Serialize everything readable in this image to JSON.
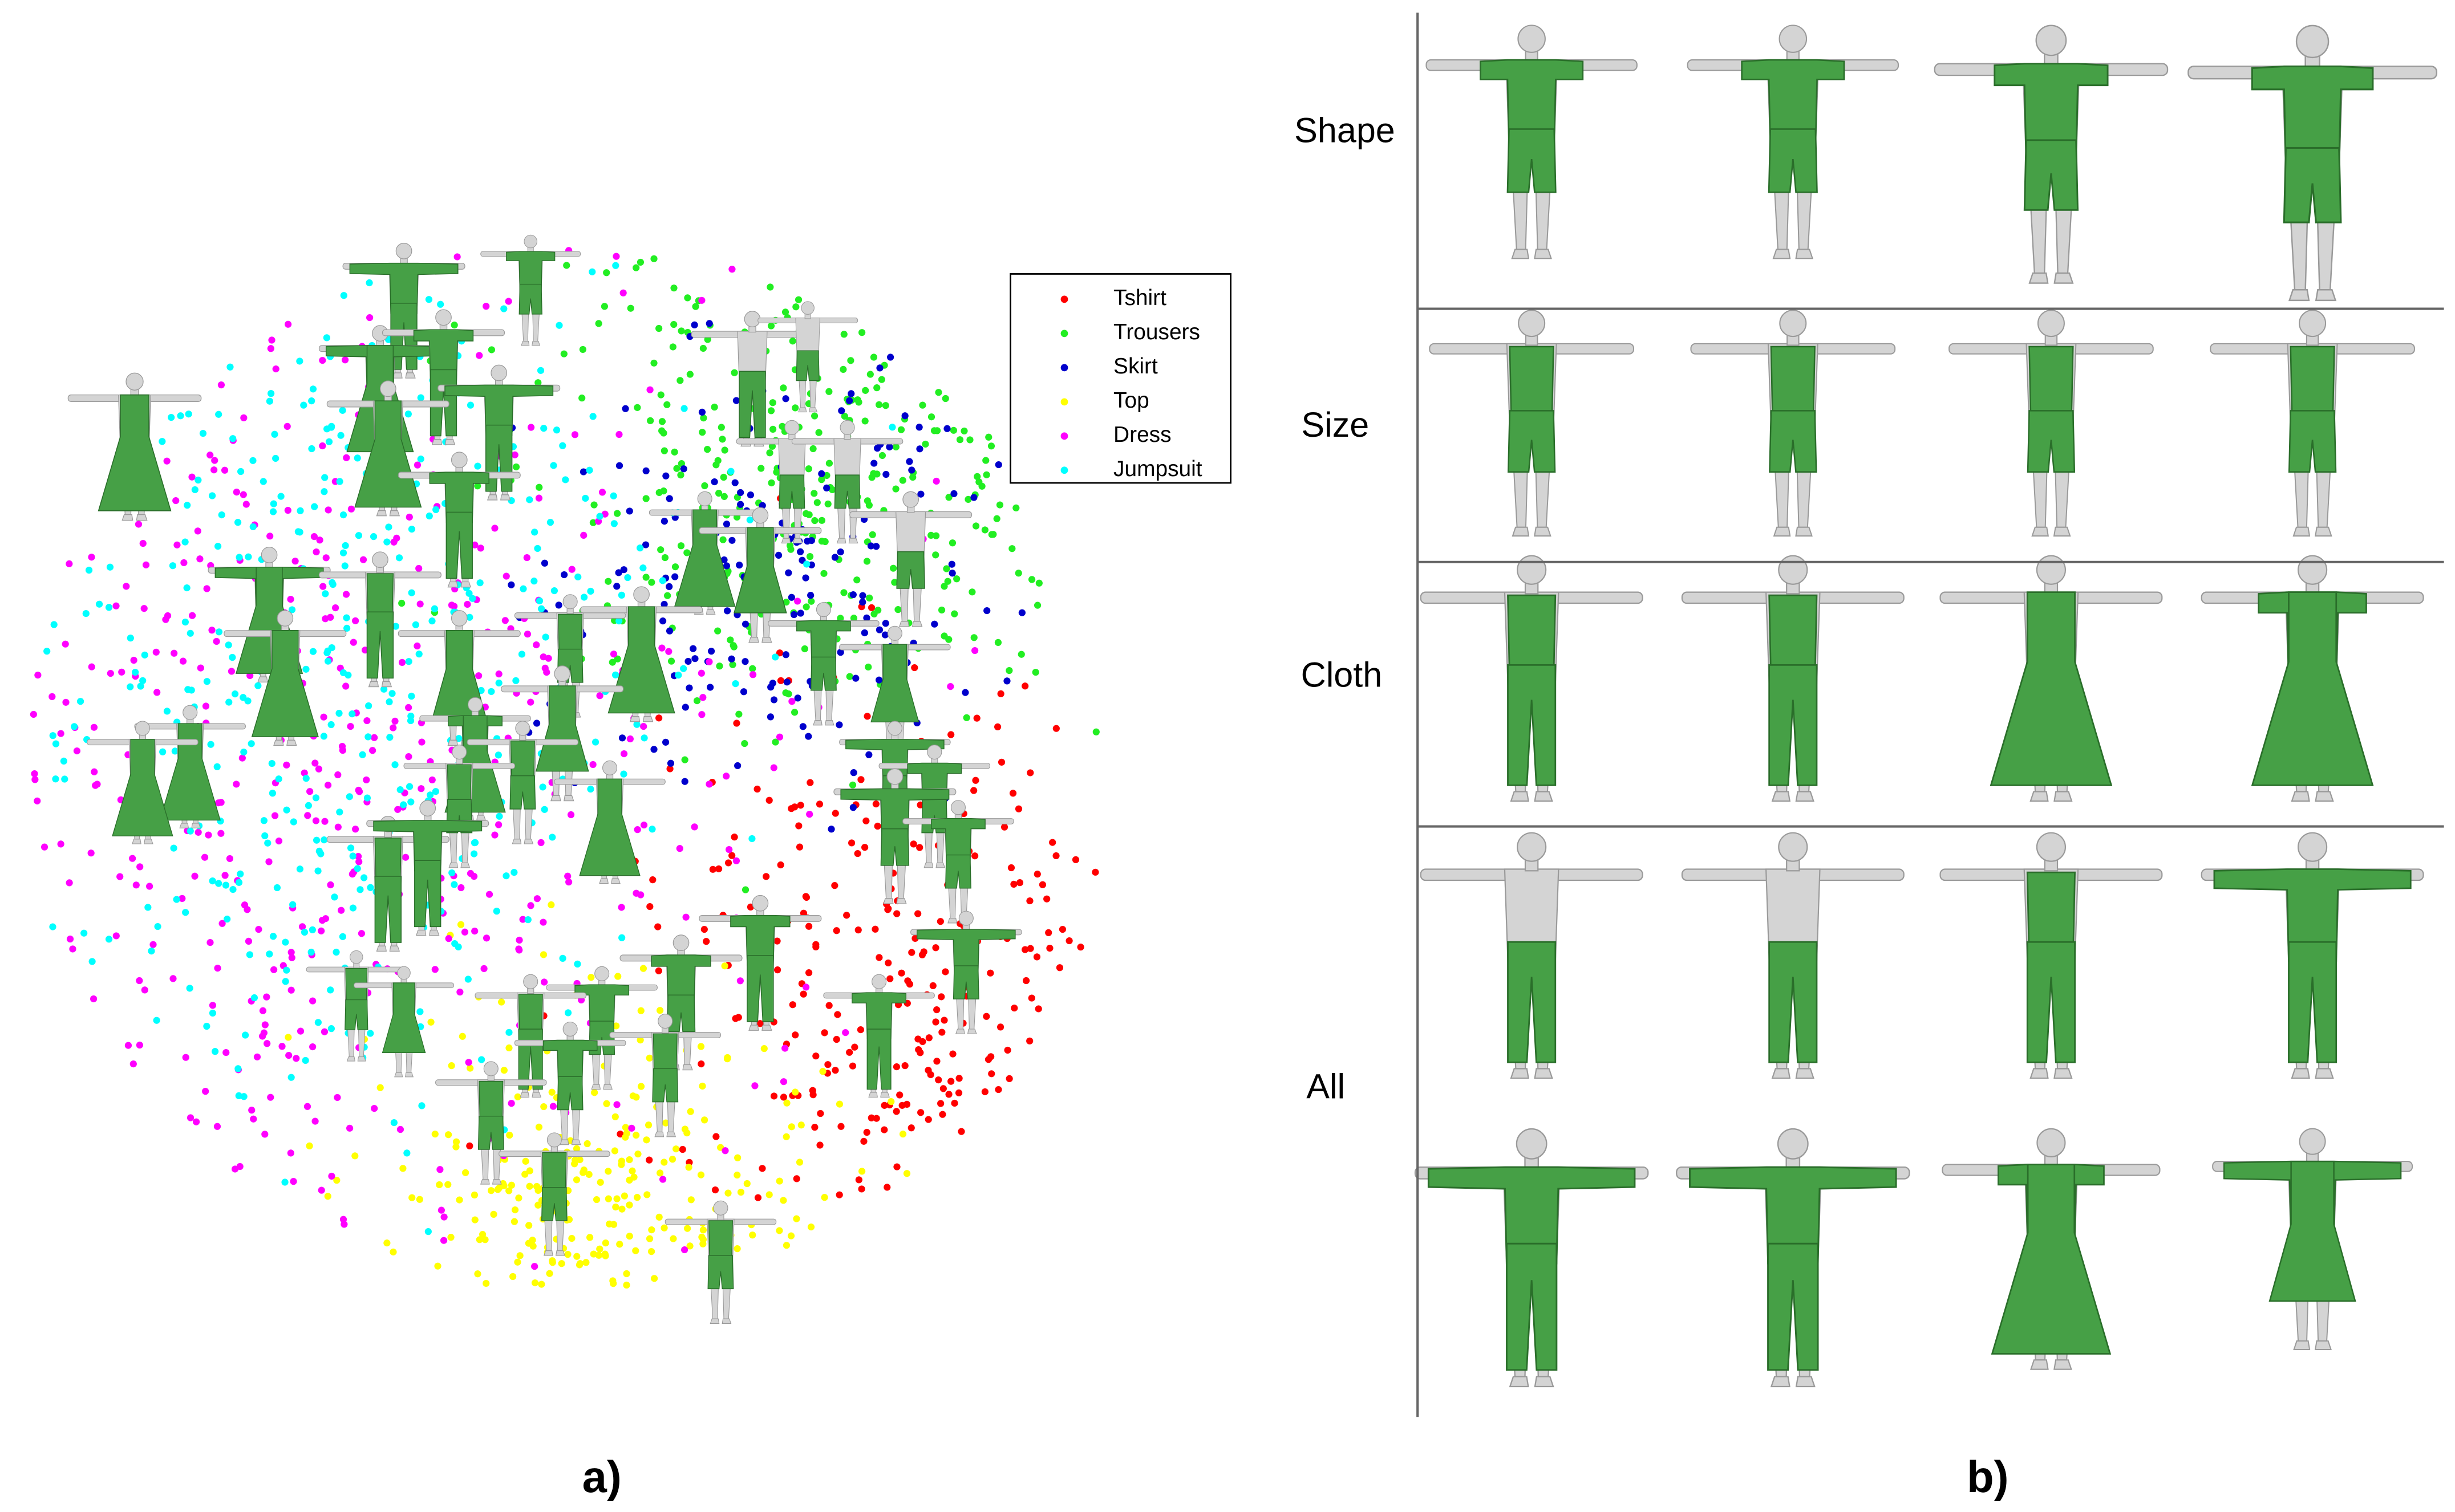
{
  "panel_a": {
    "label": "a)",
    "legend": [
      {
        "name": "Tshirt",
        "color": "#ff0000"
      },
      {
        "name": "Trousers",
        "color": "#22ee22"
      },
      {
        "name": "Skirt",
        "color": "#0000cc"
      },
      {
        "name": "Top",
        "color": "#ffff00"
      },
      {
        "name": "Dress",
        "color": "#ff00ff"
      },
      {
        "name": "Jumpsuit",
        "color": "#00ffff"
      }
    ]
  },
  "panel_b": {
    "label": "b)",
    "rows": [
      "Shape",
      "Size",
      "Cloth",
      "All"
    ]
  }
}
